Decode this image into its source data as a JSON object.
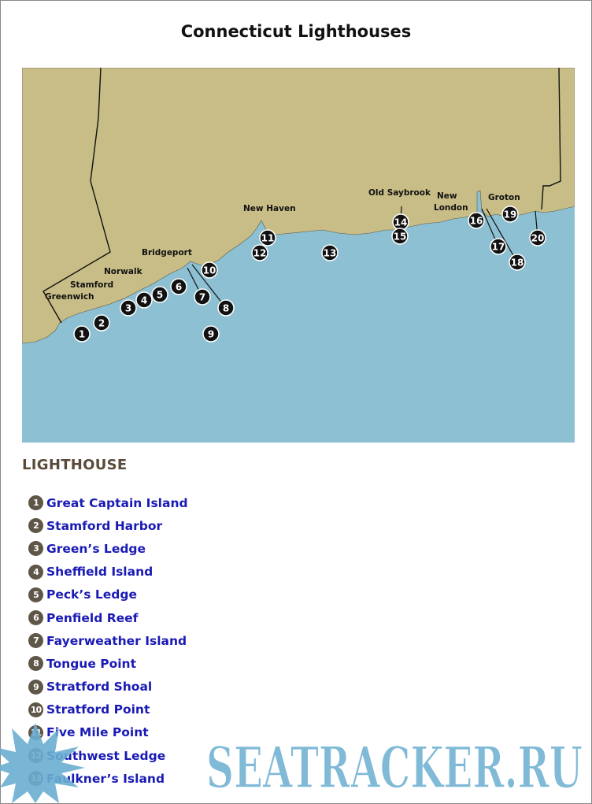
{
  "title": "Connecticut Lighthouses",
  "colors": {
    "land": "#c8bd86",
    "water": "#8cc0d2",
    "marker": "#111111",
    "link": "#1a1ab5",
    "badge": "#5f5648",
    "watermark": "#6aaed0"
  },
  "map": {
    "cities": [
      "Greenwich",
      "Stamford",
      "Norwalk",
      "Bridgeport",
      "New Haven",
      "Old Saybrook",
      "New",
      "London",
      "Groton"
    ],
    "markers": [
      "1",
      "2",
      "3",
      "4",
      "5",
      "6",
      "7",
      "8",
      "9",
      "10",
      "11",
      "12",
      "13",
      "14",
      "15",
      "16",
      "17",
      "18",
      "19",
      "20"
    ]
  },
  "section_title": "LIGHTHOUSE",
  "lighthouses": [
    {
      "num": "1",
      "name": "Great Captain Island"
    },
    {
      "num": "2",
      "name": "Stamford Harbor"
    },
    {
      "num": "3",
      "name": "Green’s Ledge"
    },
    {
      "num": "4",
      "name": "Sheffield Island"
    },
    {
      "num": "5",
      "name": "Peck’s Ledge"
    },
    {
      "num": "6",
      "name": "Penfield Reef"
    },
    {
      "num": "7",
      "name": "Fayerweather Island"
    },
    {
      "num": "8",
      "name": "Tongue Point"
    },
    {
      "num": "9",
      "name": "Stratford Shoal"
    },
    {
      "num": "10",
      "name": "Stratford Point"
    },
    {
      "num": "11",
      "name": "Five Mile Point"
    },
    {
      "num": "12",
      "name": "Southwest Ledge"
    },
    {
      "num": "13",
      "name": "Faulkner’s Island"
    }
  ],
  "watermark": "SEATRACKER.RU"
}
